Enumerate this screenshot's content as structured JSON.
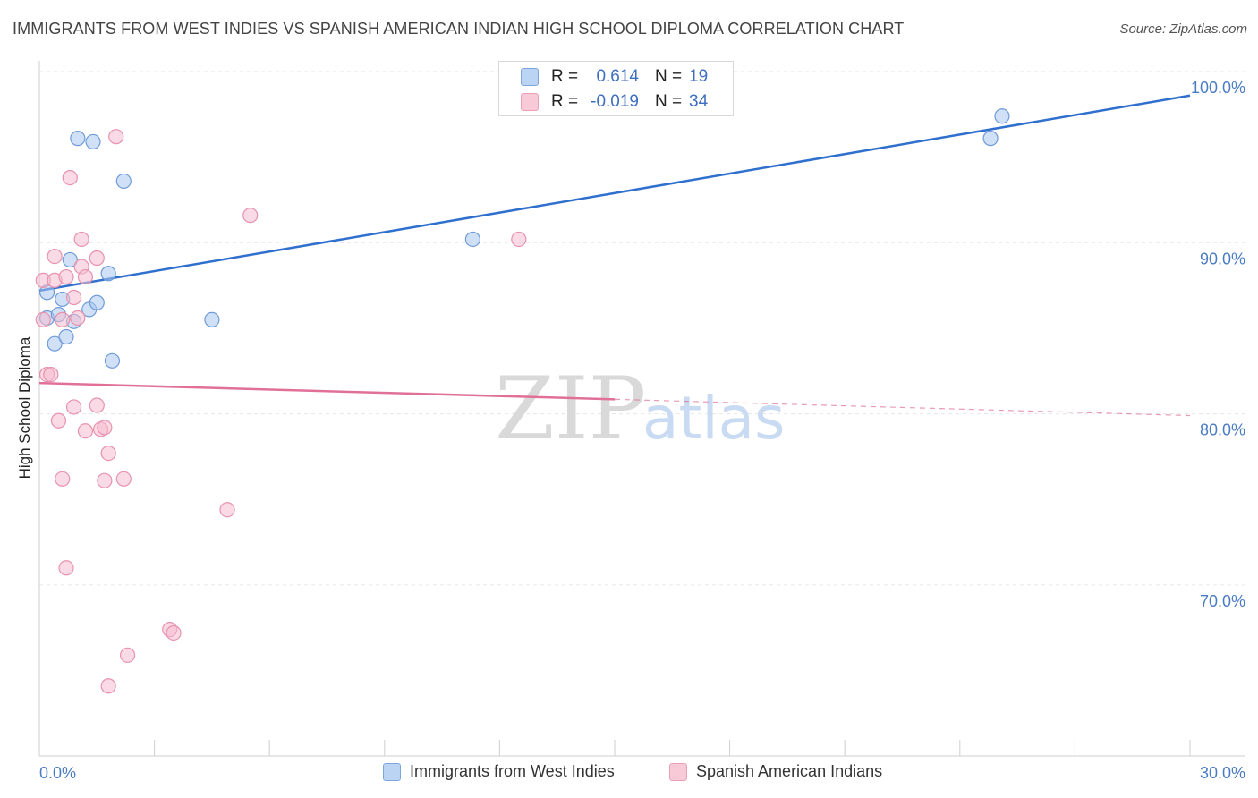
{
  "title": "IMMIGRANTS FROM WEST INDIES VS SPANISH AMERICAN INDIAN HIGH SCHOOL DIPLOMA CORRELATION CHART",
  "source": "Source: ZipAtlas.com",
  "watermark": {
    "zip": "ZIP",
    "atlas": "atlas"
  },
  "stats": [
    {
      "r_label": "R =",
      "r_value": "0.614",
      "n_label": "N =",
      "n_value": "19"
    },
    {
      "r_label": "R =",
      "r_value": "-0.019",
      "n_label": "N =",
      "n_value": "34"
    }
  ],
  "chart_data": {
    "type": "scatter",
    "title": "IMMIGRANTS FROM WEST INDIES VS SPANISH AMERICAN INDIAN HIGH SCHOOL DIPLOMA CORRELATION CHART",
    "xlabel": "",
    "ylabel": "High School Diploma",
    "xlim": [
      0,
      30
    ],
    "ylim": [
      61.5,
      101
    ],
    "x_tick_labels": [
      "0.0%",
      "30.0%"
    ],
    "y_ticks": [
      70,
      80,
      90,
      100
    ],
    "y_tick_labels": [
      "70.0%",
      "80.0%",
      "90.0%",
      "100.0%"
    ],
    "grid": true,
    "series": [
      {
        "name": "Immigrants from West Indies",
        "color": "#a9c6ee",
        "stroke": "#6f9bd8",
        "line_color": "#2f6fce",
        "points": [
          [
            0.2,
            85.6
          ],
          [
            0.2,
            87.1
          ],
          [
            0.4,
            84.1
          ],
          [
            0.5,
            85.8
          ],
          [
            0.6,
            86.7
          ],
          [
            0.7,
            84.5
          ],
          [
            0.8,
            89.0
          ],
          [
            0.9,
            85.4
          ],
          [
            1.0,
            96.1
          ],
          [
            1.3,
            86.1
          ],
          [
            1.4,
            95.9
          ],
          [
            1.5,
            86.5
          ],
          [
            1.8,
            88.2
          ],
          [
            1.9,
            83.1
          ],
          [
            2.2,
            93.6
          ],
          [
            4.5,
            85.5
          ],
          [
            11.3,
            90.2
          ],
          [
            24.8,
            96.1
          ],
          [
            25.1,
            97.4
          ]
        ],
        "trend": {
          "x": [
            0,
            30
          ],
          "y": [
            87.2,
            98.6
          ],
          "dash_from": null
        }
      },
      {
        "name": "Spanish American Indians",
        "color": "#f6bccd",
        "stroke": "#e892ad",
        "line_color": "#e07098",
        "points": [
          [
            0.1,
            85.5
          ],
          [
            0.1,
            87.8
          ],
          [
            0.2,
            82.3
          ],
          [
            0.3,
            82.3
          ],
          [
            0.4,
            89.2
          ],
          [
            0.4,
            87.8
          ],
          [
            0.5,
            79.6
          ],
          [
            0.6,
            76.2
          ],
          [
            0.6,
            85.5
          ],
          [
            0.7,
            71.0
          ],
          [
            0.7,
            88.0
          ],
          [
            0.8,
            93.8
          ],
          [
            0.9,
            86.8
          ],
          [
            0.9,
            80.4
          ],
          [
            1.0,
            85.6
          ],
          [
            1.1,
            90.2
          ],
          [
            1.1,
            88.6
          ],
          [
            1.2,
            88.0
          ],
          [
            1.2,
            79.0
          ],
          [
            1.5,
            89.1
          ],
          [
            1.5,
            80.5
          ],
          [
            1.6,
            79.1
          ],
          [
            1.7,
            79.2
          ],
          [
            1.7,
            76.1
          ],
          [
            1.8,
            77.7
          ],
          [
            1.8,
            64.1
          ],
          [
            2.0,
            96.2
          ],
          [
            2.2,
            76.2
          ],
          [
            2.3,
            65.9
          ],
          [
            3.4,
            67.4
          ],
          [
            3.5,
            67.2
          ],
          [
            4.9,
            74.4
          ],
          [
            5.5,
            91.6
          ],
          [
            12.5,
            90.2
          ]
        ],
        "trend": {
          "x": [
            0,
            30
          ],
          "y": [
            81.8,
            79.9
          ],
          "dash_from": 15
        }
      }
    ]
  }
}
